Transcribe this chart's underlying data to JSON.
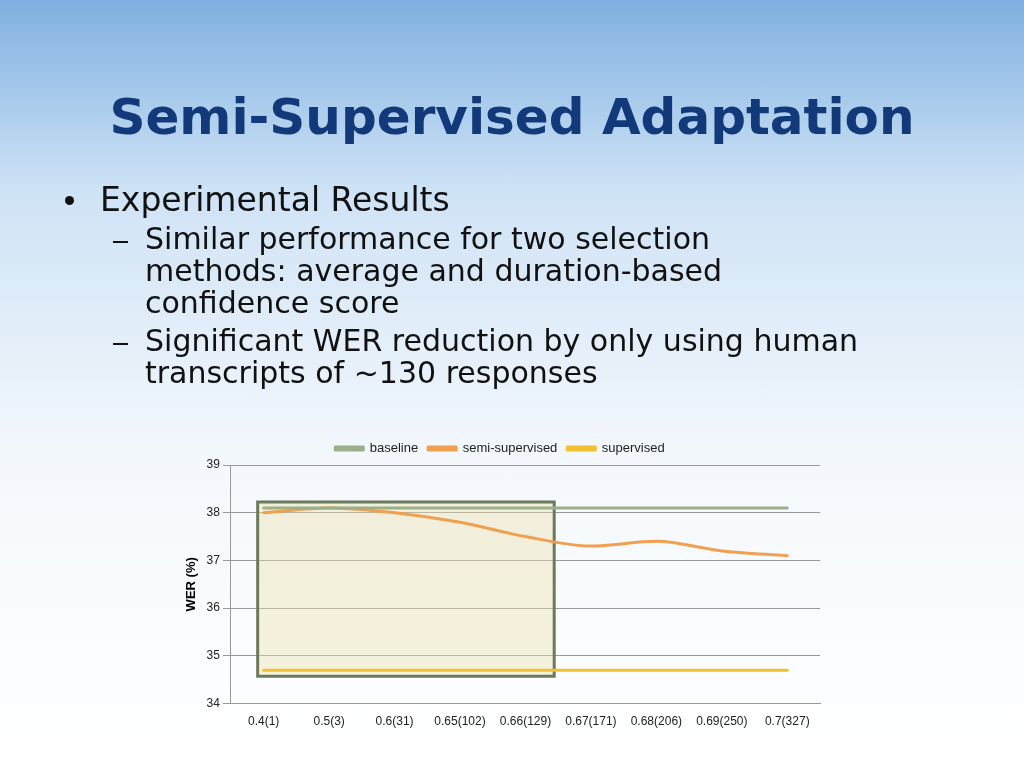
{
  "chart_data": {
    "type": "line",
    "title": "Semi-Supervised Adaptation",
    "annotations": [
      "Experimental Results",
      "Similar performance for two selection methods: average and duration-based confidence score",
      "Significant WER reduction by only using human transcripts of ~130 responses"
    ],
    "ylabel": "WER (%)",
    "categories": [
      "0.4(1)",
      "0.5(3)",
      "0.6(31)",
      "0.65(102)",
      "0.66(129)",
      "0.67(171)",
      "0.68(206)",
      "0.69(250)",
      "0.7(327)"
    ],
    "series": [
      {
        "name": "baseline",
        "color": "#9bb08a",
        "values": [
          38.1,
          38.1,
          38.1,
          38.1,
          38.1,
          38.1,
          38.1,
          38.1,
          38.1
        ]
      },
      {
        "name": "semi-supervised",
        "color": "#f0a04e",
        "values": [
          38.0,
          38.1,
          38.0,
          37.8,
          37.5,
          37.3,
          37.4,
          37.2,
          37.1
        ]
      },
      {
        "name": "supervised",
        "color": "#f0c030",
        "values": [
          34.7,
          34.7,
          34.7,
          34.7,
          34.7,
          34.7,
          34.7,
          34.7,
          34.7
        ]
      }
    ],
    "bands": [
      {
        "axis": "x",
        "from": "0.4(1)",
        "to": "0.66(129)",
        "color": "#ebe1aa"
      }
    ],
    "ylim": [
      34,
      39
    ],
    "yticks": [
      34,
      35,
      36,
      37,
      38,
      39
    ],
    "grid": "y",
    "legend": "top",
    "marker": "none",
    "line_style": "solid"
  }
}
